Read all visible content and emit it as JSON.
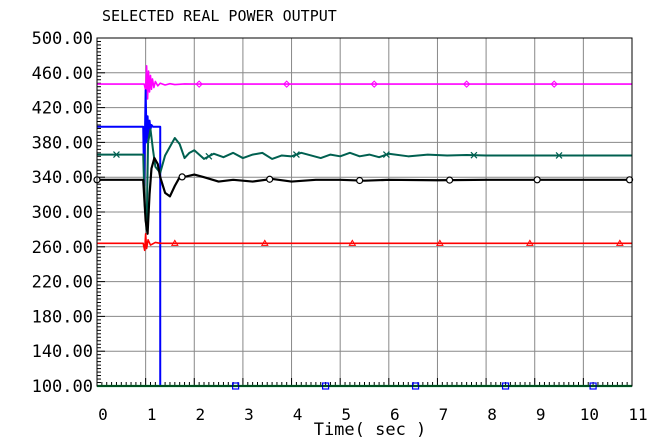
{
  "chart_data": {
    "type": "line",
    "title": "SELECTED REAL POWER OUTPUT",
    "xlabel": "Time( sec )",
    "ylabel": "",
    "xlim": [
      0,
      11
    ],
    "ylim": [
      100,
      500
    ],
    "x_ticks": [
      0,
      1,
      2,
      3,
      4,
      5,
      6,
      7,
      8,
      9,
      10,
      11
    ],
    "y_ticks": [
      "100.00",
      "140.00",
      "180.00",
      "220.00",
      "260.00",
      "300.00",
      "340.00",
      "380.00",
      "420.00",
      "460.00",
      "500.00"
    ],
    "grid": true,
    "colors": {
      "magenta": "#ff00ff",
      "blue": "#0000ff",
      "teal": "#006050",
      "black": "#000000",
      "red": "#ff0000",
      "green": "#00a040"
    },
    "series": [
      {
        "color": "magenta",
        "marker": "diamond",
        "x": [
          0,
          0.9,
          0.97,
          1.0,
          1.02,
          1.04,
          1.06,
          1.08,
          1.1,
          1.12,
          1.14,
          1.17,
          1.2,
          1.25,
          1.3,
          1.4,
          1.5,
          1.6,
          1.8,
          2.0,
          11
        ],
        "y": [
          447,
          447,
          447,
          440,
          468,
          430,
          462,
          438,
          457,
          441,
          453,
          443,
          450,
          445,
          448,
          446,
          447.5,
          446.5,
          447.2,
          447,
          447
        ]
      },
      {
        "color": "blue",
        "marker": "square",
        "x": [
          0,
          0.95,
          0.97,
          1.0,
          1.02,
          1.04,
          1.06,
          1.08,
          1.1,
          1.12,
          1.15,
          1.2,
          1.25,
          1.3,
          1.3,
          11
        ],
        "y": [
          398,
          398,
          330,
          440,
          380,
          410,
          385,
          405,
          395,
          400,
          398,
          398,
          398,
          398,
          100,
          100
        ]
      },
      {
        "color": "teal",
        "marker": "x",
        "x": [
          0,
          0.95,
          0.98,
          1.02,
          1.05,
          1.1,
          1.15,
          1.2,
          1.3,
          1.4,
          1.5,
          1.6,
          1.7,
          1.8,
          1.9,
          2.0,
          2.2,
          2.4,
          2.6,
          2.8,
          3.0,
          3.2,
          3.4,
          3.6,
          3.8,
          4.0,
          4.2,
          4.4,
          4.6,
          4.8,
          5.0,
          5.2,
          5.4,
          5.6,
          5.8,
          6.0,
          6.4,
          6.8,
          7.2,
          7.6,
          8.0,
          11
        ],
        "y": [
          366,
          366,
          310,
          280,
          380,
          395,
          372,
          352,
          345,
          365,
          375,
          385,
          378,
          362,
          368,
          371,
          361,
          367,
          363,
          368,
          362,
          366,
          368,
          361,
          365,
          364,
          368,
          365,
          362,
          366,
          364,
          368,
          364,
          366,
          363,
          367,
          364,
          366,
          365,
          365.5,
          365,
          365
        ]
      },
      {
        "color": "black",
        "marker": "circle",
        "x": [
          0,
          0.95,
          1.0,
          1.04,
          1.08,
          1.12,
          1.18,
          1.25,
          1.3,
          1.4,
          1.5,
          1.6,
          1.7,
          1.85,
          2.0,
          2.2,
          2.5,
          2.8,
          3.2,
          3.6,
          4.0,
          4.5,
          5.0,
          5.5,
          6.0,
          7.0,
          8.0,
          9.0,
          11
        ],
        "y": [
          337,
          337,
          290,
          275,
          320,
          350,
          362,
          355,
          340,
          322,
          318,
          330,
          340,
          341,
          343,
          340,
          335,
          337,
          335,
          338,
          335,
          337,
          337,
          336,
          337,
          336.5,
          337,
          337,
          337
        ]
      },
      {
        "color": "red",
        "marker": "triangle",
        "x": [
          0,
          0.95,
          0.98,
          1.0,
          1.02,
          1.05,
          1.1,
          1.2,
          1.3,
          11
        ],
        "y": [
          264,
          264,
          256,
          275,
          258,
          268,
          262,
          265,
          264,
          264
        ]
      },
      {
        "color": "green",
        "marker": "none",
        "x": [
          0,
          11
        ],
        "y": [
          100,
          100
        ]
      }
    ],
    "marker_x": {
      "magenta": [
        2.1,
        3.9,
        5.7,
        7.6,
        9.4
      ],
      "teal": [
        0.4,
        2.3,
        4.1,
        5.95,
        7.75,
        9.5
      ],
      "black": [
        0,
        1.75,
        3.55,
        5.4,
        7.25,
        9.05,
        10.95
      ],
      "red": [
        1.6,
        3.45,
        5.25,
        7.05,
        8.9,
        10.75
      ],
      "blue": [
        2.85,
        4.7,
        6.55,
        8.4,
        10.2
      ]
    }
  }
}
